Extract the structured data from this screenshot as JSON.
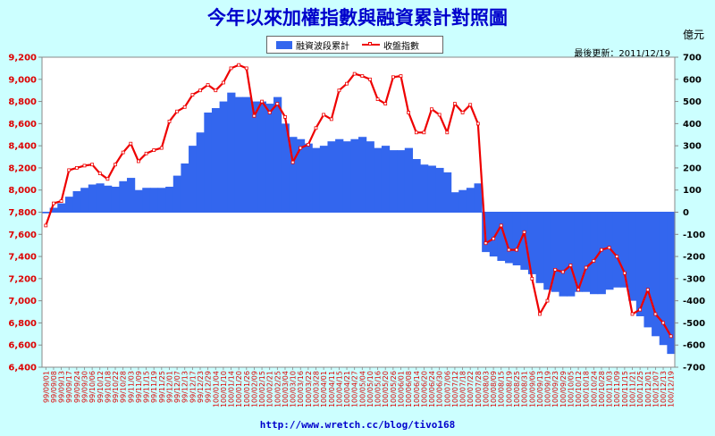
{
  "title": "今年以來加權指數與融資累計對照圖",
  "legend": {
    "bar_label": "融資波段累計",
    "line_label": "收盤指數"
  },
  "unit_label": "億元",
  "update_text": "最後更新：2011/12/19",
  "footer_text": "http://www.wretch.cc/blog/tivo168",
  "colors": {
    "bar": "#3366ee",
    "line": "#ee0000",
    "plot_bg": "#ffffff",
    "page_bg": "#ccffff",
    "title": "#0000cc"
  },
  "chart_data": {
    "type": "bar+line",
    "x_labels": [
      "99/09/01",
      "99/09/08",
      "99/09/13",
      "99/09/17",
      "99/09/24",
      "99/09/30",
      "99/10/06",
      "99/10/12",
      "99/10/18",
      "99/10/22",
      "99/10/28",
      "99/11/03",
      "99/11/09",
      "99/11/15",
      "99/11/19",
      "99/11/25",
      "99/12/01",
      "99/12/07",
      "99/12/13",
      "99/12/17",
      "99/12/23",
      "99/12/29",
      "100/01/04",
      "100/01/10",
      "100/01/14",
      "100/01/20",
      "100/01/26",
      "100/02/09",
      "100/02/15",
      "100/02/21",
      "100/02/25",
      "100/03/04",
      "100/03/10",
      "100/03/16",
      "100/03/22",
      "100/03/28",
      "100/04/01",
      "100/04/11",
      "100/04/15",
      "100/04/21",
      "100/04/27",
      "100/05/04",
      "100/05/10",
      "100/05/16",
      "100/05/20",
      "100/05/26",
      "100/06/01",
      "100/06/08",
      "100/06/14",
      "100/06/20",
      "100/06/24",
      "100/06/30",
      "100/07/06",
      "100/07/12",
      "100/07/18",
      "100/07/22",
      "100/07/28",
      "100/08/03",
      "100/08/09",
      "100/08/15",
      "100/08/19",
      "100/08/25",
      "100/08/31",
      "100/09/06",
      "100/09/13",
      "100/09/19",
      "100/09/23",
      "100/09/29",
      "100/10/05",
      "100/10/12",
      "100/10/18",
      "100/10/24",
      "100/10/28",
      "100/11/03",
      "100/11/09",
      "100/11/15",
      "100/11/21",
      "100/11/25",
      "100/12/01",
      "100/12/07",
      "100/12/13",
      "100/12/19"
    ],
    "left_axis": {
      "label": "收盤指數",
      "min": 6400,
      "max": 9200,
      "ticks": [
        6400,
        6600,
        6800,
        7000,
        7200,
        7400,
        7600,
        7800,
        8000,
        8200,
        8400,
        8600,
        8800,
        9000,
        9200
      ]
    },
    "right_axis": {
      "label": "億元",
      "min": -700,
      "max": 700,
      "ticks": [
        -700,
        -600,
        -500,
        -400,
        -300,
        -200,
        -100,
        0,
        100,
        200,
        300,
        400,
        500,
        600,
        700
      ]
    },
    "series": [
      {
        "name": "融資波段累計",
        "type": "bar",
        "axis": "right",
        "values": [
          -5,
          20,
          40,
          70,
          95,
          110,
          125,
          130,
          120,
          115,
          140,
          155,
          100,
          110,
          110,
          110,
          115,
          165,
          220,
          300,
          360,
          450,
          470,
          500,
          540,
          520,
          520,
          500,
          500,
          490,
          520,
          400,
          340,
          330,
          310,
          290,
          300,
          320,
          330,
          320,
          330,
          340,
          320,
          290,
          300,
          280,
          280,
          290,
          240,
          215,
          210,
          200,
          180,
          90,
          100,
          110,
          130,
          -180,
          -200,
          -220,
          -230,
          -240,
          -260,
          -280,
          -320,
          -350,
          -360,
          -380,
          -380,
          -360,
          -360,
          -370,
          -370,
          -350,
          -340,
          -340,
          -400,
          -470,
          -520,
          -560,
          -600,
          -640
        ]
      },
      {
        "name": "收盤指數",
        "type": "line",
        "axis": "left",
        "values": [
          7680,
          7880,
          7900,
          8180,
          8200,
          8220,
          8230,
          8150,
          8100,
          8230,
          8340,
          8420,
          8260,
          8330,
          8360,
          8380,
          8620,
          8710,
          8750,
          8860,
          8900,
          8950,
          8900,
          8970,
          9100,
          9130,
          9100,
          8670,
          8800,
          8700,
          8780,
          8660,
          8250,
          8380,
          8410,
          8560,
          8680,
          8640,
          8900,
          8960,
          9050,
          9030,
          9000,
          8820,
          8780,
          9020,
          9030,
          8700,
          8520,
          8520,
          8730,
          8680,
          8520,
          8780,
          8700,
          8770,
          8600,
          7520,
          7560,
          7680,
          7460,
          7460,
          7620,
          7200,
          6880,
          7000,
          7280,
          7260,
          7320,
          7100,
          7300,
          7360,
          7460,
          7480,
          7400,
          7250,
          6880,
          6920,
          7100,
          6880,
          6800,
          6680
        ]
      }
    ],
    "grid": false,
    "legend_position": "top-center"
  }
}
